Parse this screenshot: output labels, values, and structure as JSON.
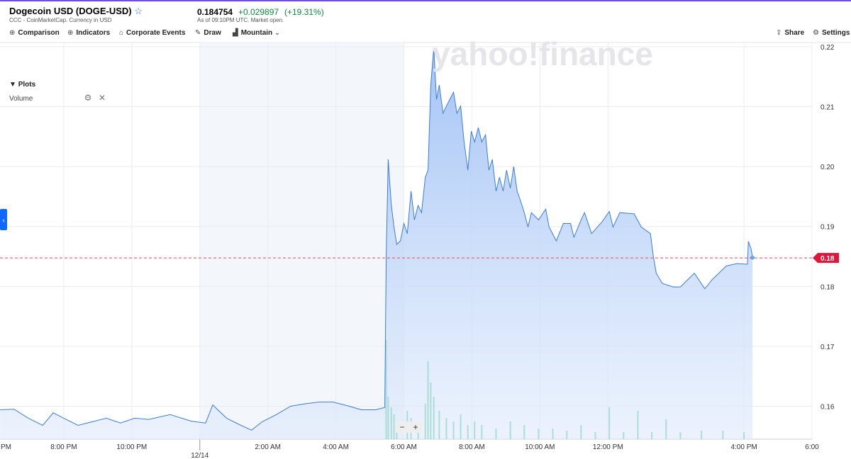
{
  "header": {
    "title": "Dogecoin USD (DOGE-USD)",
    "subtitle": "CCC - CoinMarketCap. Currency in USD",
    "price": "0.184754",
    "change": "+0.029897",
    "change_percent": "(+19.31%)",
    "as_of": "As of 09:10PM UTC. Market open."
  },
  "toolbar": {
    "comparison": "Comparison",
    "indicators": "Indicators",
    "corporate_events": "Corporate Events",
    "draw": "Draw",
    "chart_style": "Mountain",
    "share": "Share",
    "settings": "Settings"
  },
  "plots_panel": {
    "title": "Plots",
    "item": "Volume"
  },
  "watermark": "yahoo!finance",
  "zoom": {
    "out": "−",
    "in": "+"
  },
  "chart_data": {
    "type": "area",
    "color": "#3b7ddd",
    "x": [
      18.13,
      18.54,
      18.96,
      19.38,
      19.69,
      20.0,
      20.42,
      20.83,
      21.25,
      21.67,
      22.08,
      22.5,
      23.13,
      23.75,
      24.17,
      24.38,
      24.79,
      25.21,
      25.52,
      25.83,
      26.25,
      26.67,
      27.08,
      27.5,
      27.92,
      28.33,
      28.75,
      29.17,
      29.44,
      29.48,
      29.54,
      29.63,
      29.71,
      29.79,
      29.9,
      30.0,
      30.1,
      30.21,
      30.31,
      30.42,
      30.52,
      30.63,
      30.71,
      30.79,
      30.88,
      30.96,
      31.04,
      31.15,
      31.25,
      31.46,
      31.56,
      31.67,
      31.77,
      31.88,
      31.98,
      32.08,
      32.19,
      32.29,
      32.4,
      32.5,
      32.6,
      32.71,
      32.81,
      32.92,
      33.02,
      33.13,
      33.23,
      33.33,
      33.44,
      33.54,
      33.65,
      33.75,
      33.96,
      34.17,
      34.27,
      34.48,
      34.69,
      34.9,
      35.0,
      35.21,
      35.31,
      35.52,
      35.83,
      36.04,
      36.15,
      36.35,
      36.77,
      36.98,
      37.25,
      37.33,
      37.42,
      37.6,
      37.92,
      38.13,
      38.54,
      38.85,
      39.06,
      39.48,
      39.79,
      40.1,
      40.13,
      40.21,
      40.25
    ],
    "values": [
      0.1594,
      0.1595,
      0.158,
      0.1568,
      0.1589,
      0.158,
      0.1568,
      0.1574,
      0.158,
      0.1572,
      0.158,
      0.1578,
      0.1586,
      0.1575,
      0.1572,
      0.1602,
      0.158,
      0.1568,
      0.156,
      0.1574,
      0.1586,
      0.16,
      0.1604,
      0.1607,
      0.1607,
      0.1601,
      0.1594,
      0.1594,
      0.1598,
      0.1852,
      0.2012,
      0.1935,
      0.1899,
      0.187,
      0.1876,
      0.1905,
      0.1888,
      0.1959,
      0.1911,
      0.1935,
      0.1923,
      0.1982,
      0.1994,
      0.2136,
      0.2198,
      0.2112,
      0.2136,
      0.2089,
      0.2101,
      0.2124,
      0.2089,
      0.2101,
      0.2041,
      0.1994,
      0.2059,
      0.2041,
      0.2065,
      0.2041,
      0.2053,
      0.1994,
      0.2012,
      0.1959,
      0.1982,
      0.1959,
      0.1994,
      0.1964,
      0.2,
      0.1959,
      0.1941,
      0.1923,
      0.1899,
      0.1923,
      0.1911,
      0.1929,
      0.1899,
      0.1876,
      0.1905,
      0.1905,
      0.1882,
      0.1911,
      0.1923,
      0.1888,
      0.1908,
      0.1925,
      0.1899,
      0.1923,
      0.1921,
      0.1899,
      0.1888,
      0.1852,
      0.1822,
      0.1805,
      0.1799,
      0.1799,
      0.1822,
      0.1796,
      0.1811,
      0.1834,
      0.1838,
      0.1837,
      0.1875,
      0.1862,
      0.1848
    ],
    "last_price": {
      "value": 0.184754,
      "label": "0.18"
    },
    "volume": {
      "color": "#3cc68a",
      "x": [
        29.48,
        29.54,
        29.63,
        29.71,
        29.79,
        30.1,
        30.21,
        30.42,
        30.63,
        30.71,
        30.79,
        30.88,
        31.04,
        31.25,
        31.46,
        31.67,
        31.88,
        32.08,
        32.29,
        32.71,
        33.13,
        33.54,
        33.96,
        34.38,
        34.79,
        35.21,
        35.63,
        36.04,
        36.46,
        36.88,
        37.29,
        37.71,
        38.13,
        38.75,
        39.38,
        40.0
      ],
      "values": [
        140,
        60,
        45,
        35,
        25,
        40,
        30,
        25,
        50,
        110,
        80,
        60,
        40,
        30,
        25,
        35,
        20,
        25,
        20,
        15,
        25,
        20,
        15,
        15,
        12,
        20,
        10,
        45,
        10,
        40,
        10,
        28,
        10,
        12,
        12,
        10
      ]
    },
    "xlim": [
      18.125,
      42
    ],
    "ylim": [
      0.1545,
      0.2207
    ],
    "xticks": [
      {
        "value": 18,
        "label": "PM"
      },
      {
        "value": 20,
        "label": "8:00 PM"
      },
      {
        "value": 22,
        "label": "10:00 PM"
      },
      {
        "value": 24,
        "label": "12/14"
      },
      {
        "value": 26,
        "label": "2:00 AM"
      },
      {
        "value": 28,
        "label": "4:00 AM"
      },
      {
        "value": 30,
        "label": "6:00 AM"
      },
      {
        "value": 32,
        "label": "8:00 AM"
      },
      {
        "value": 34,
        "label": "10:00 AM"
      },
      {
        "value": 36,
        "label": "12:00 PM"
      },
      {
        "value": 40,
        "label": "4:00 PM"
      },
      {
        "value": 42,
        "label": "6:00"
      }
    ],
    "yticks": [
      0.16,
      0.17,
      0.18,
      0.19,
      {
        "value": 0.2,
        "label": "0.20"
      },
      0.21,
      0.22
    ],
    "grid": true
  }
}
